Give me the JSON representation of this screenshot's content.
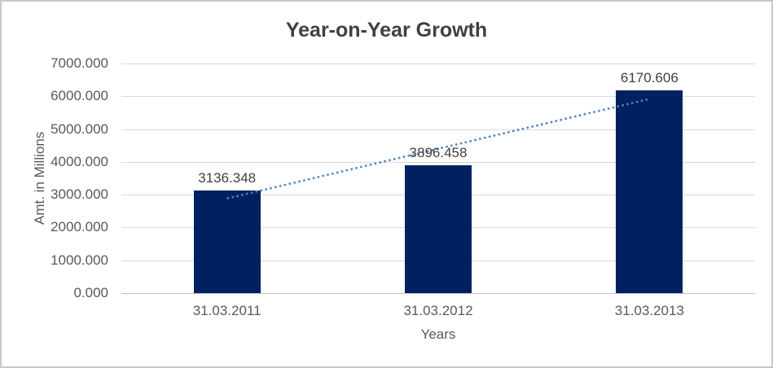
{
  "window": {
    "background_color": "#ffffff",
    "border_color": "#c9c9c9"
  },
  "chart_data": {
    "type": "bar",
    "title": "Year-on-Year Growth",
    "xlabel": "Years",
    "ylabel": "Amt. in Millions",
    "categories": [
      "31.03.2011",
      "31.03.2012",
      "31.03.2013"
    ],
    "values": [
      3136.348,
      3896.458,
      6170.606
    ],
    "data_labels": [
      "3136.348",
      "3896.458",
      "6170.606"
    ],
    "ylim": [
      0,
      7000
    ],
    "ytick_labels": [
      "0.000",
      "1000.000",
      "2000.000",
      "3000.000",
      "4000.000",
      "5000.000",
      "6000.000",
      "7000.000"
    ],
    "grid": true,
    "legend": "none",
    "bar_color": "#002060",
    "gridline_color": "#d9d9d9",
    "axis_line_color": "#bfbfbf",
    "title_color": "#404040",
    "data_label_color": "#404040",
    "tick_label_color": "#595959",
    "trendline": {
      "type": "linear",
      "style": "dotted",
      "color": "#4d82c4"
    }
  }
}
